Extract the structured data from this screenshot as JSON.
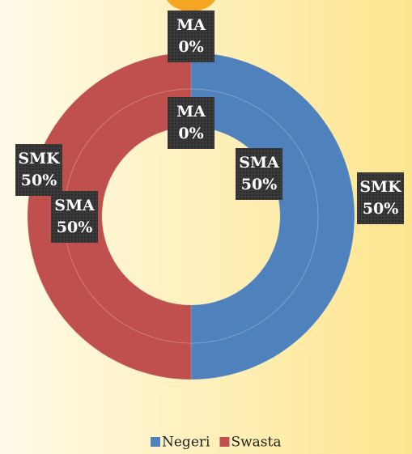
{
  "chart_data": {
    "type": "doughnut",
    "categories": [
      "Negeri",
      "Swasta"
    ],
    "colors": [
      "#4f81bd",
      "#c0504d"
    ],
    "series": [
      {
        "name": "SMK",
        "values": [
          50,
          50
        ],
        "value_labels": [
          "50%",
          "50%"
        ]
      },
      {
        "name": "SMA",
        "values": [
          50,
          50
        ],
        "value_labels": [
          "50%",
          "50%"
        ]
      }
    ],
    "zero_slices": [
      {
        "name": "MA",
        "value": 0,
        "value_label": "0%"
      },
      {
        "name": "MA",
        "value": 0,
        "value_label": "0%"
      }
    ],
    "legend": "bottom"
  }
}
